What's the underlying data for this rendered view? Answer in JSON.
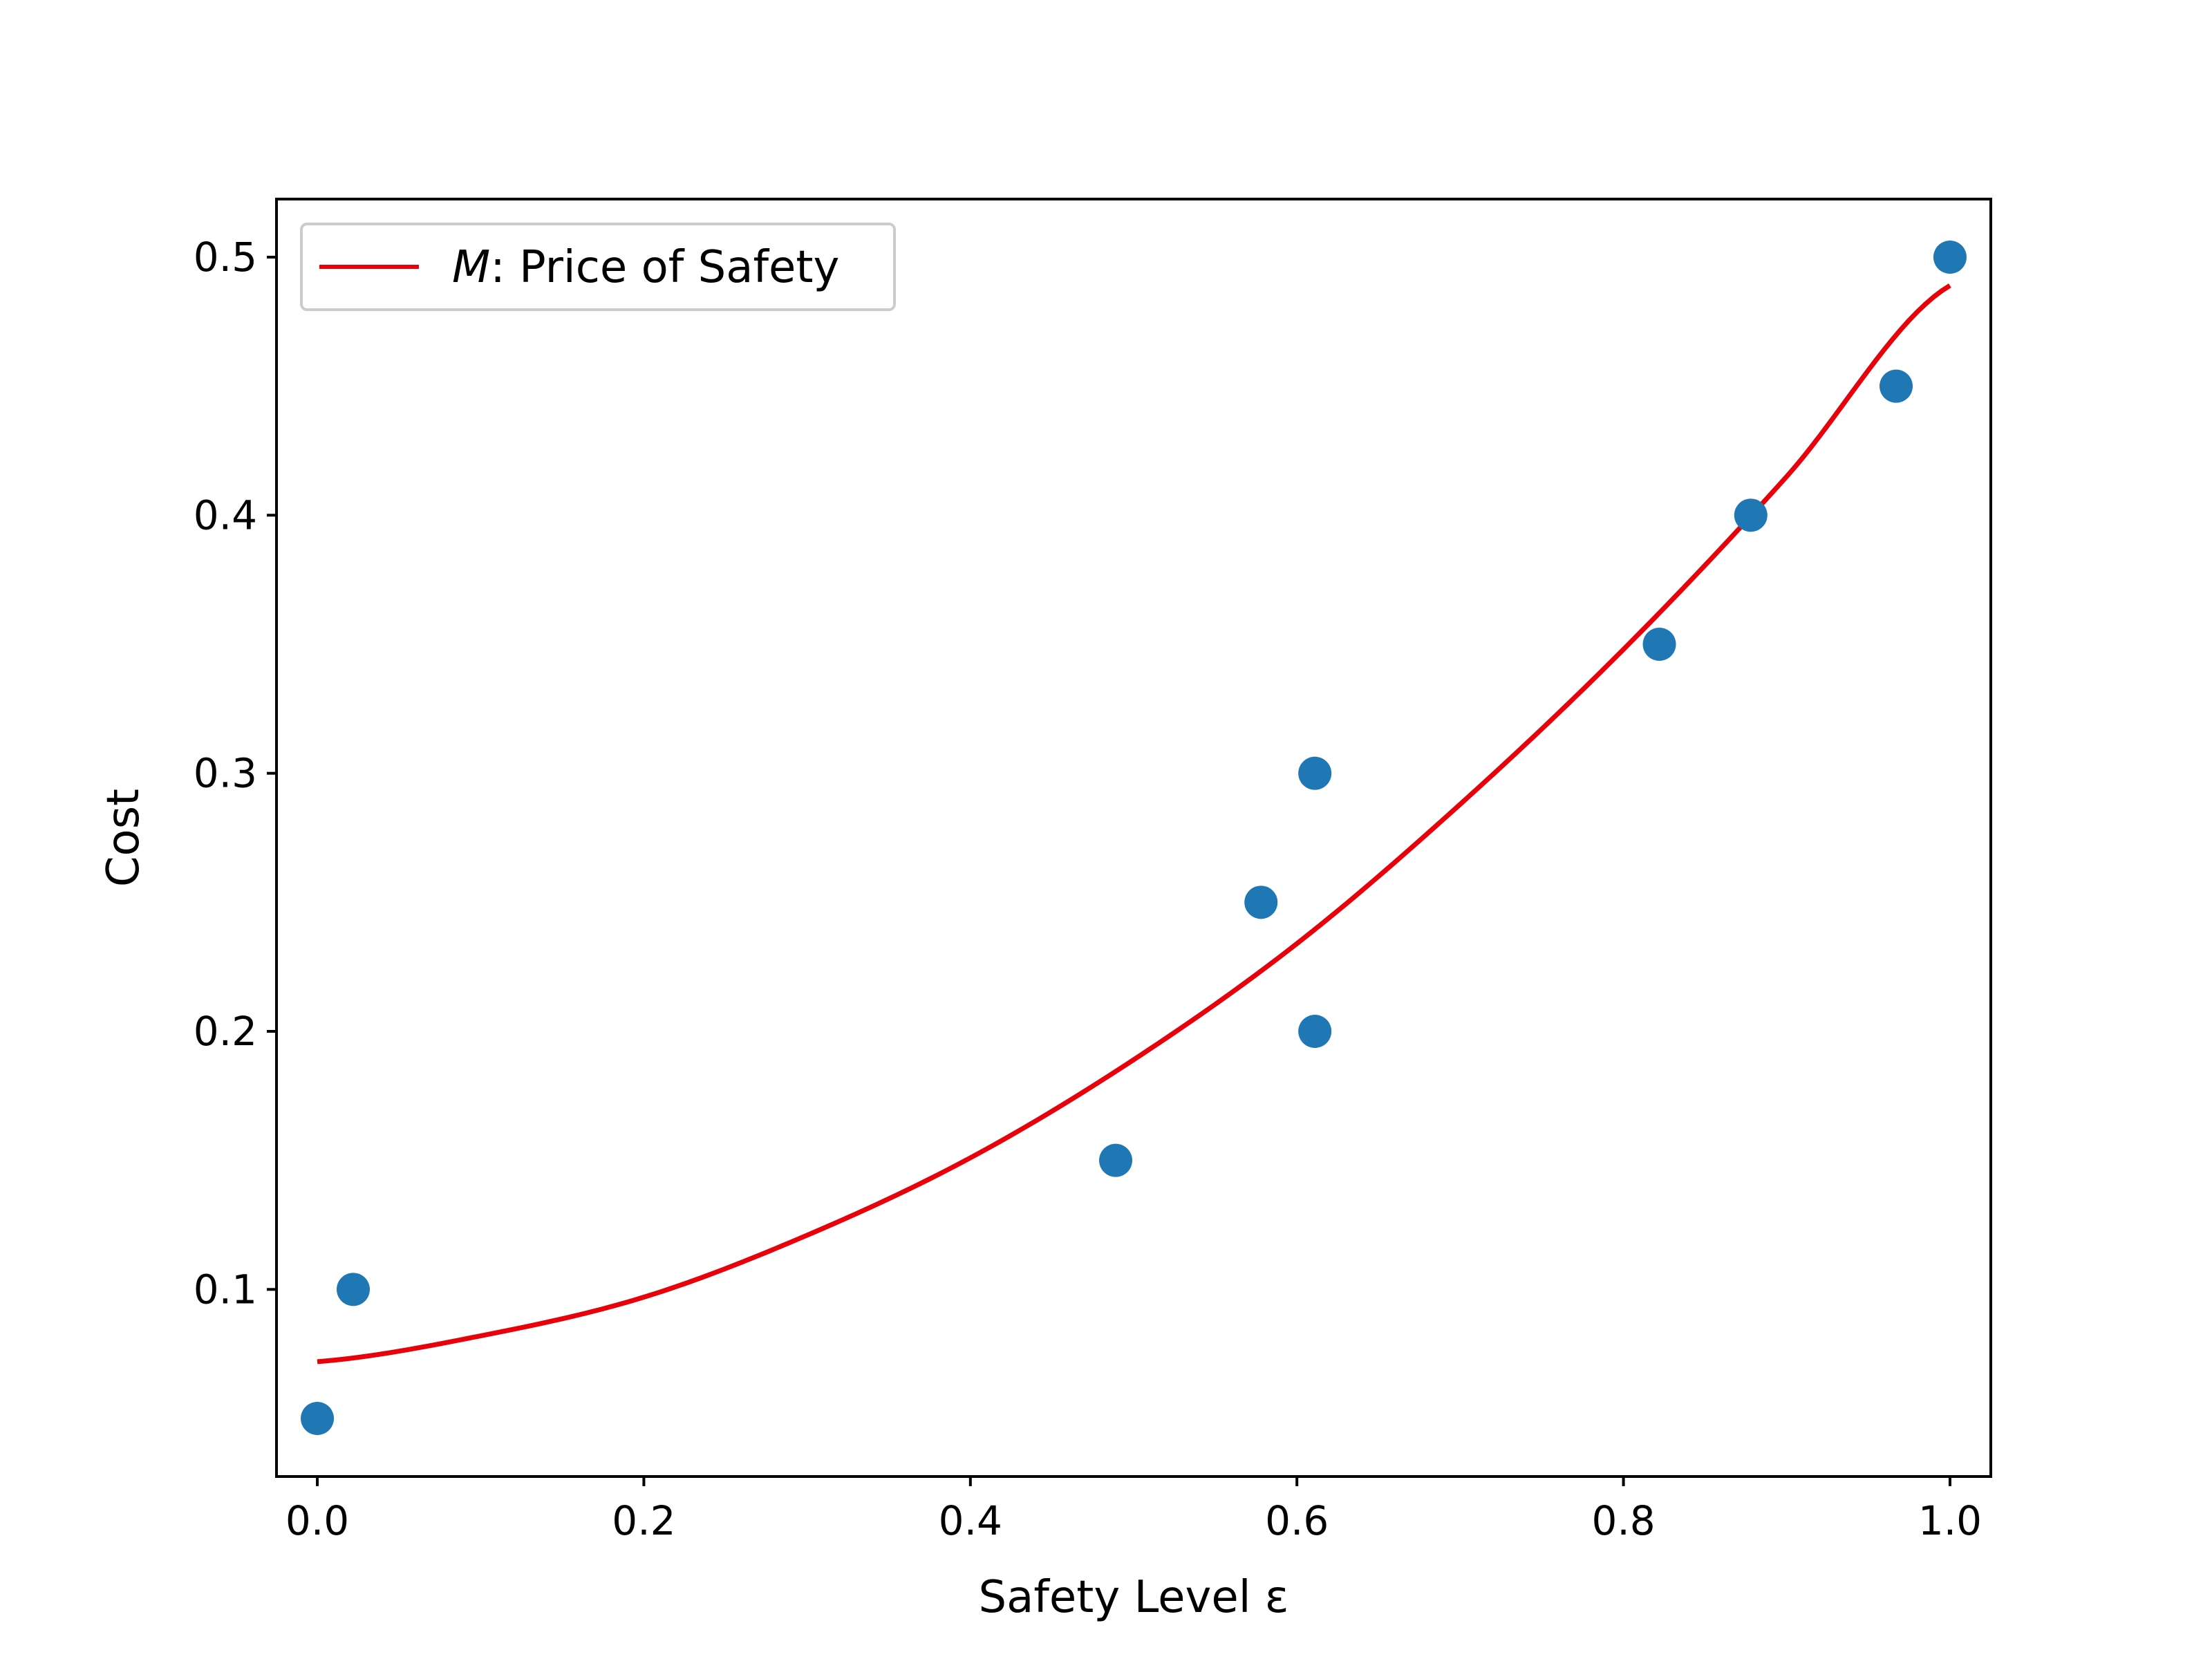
{
  "chart_data": {
    "type": "scatter",
    "xlabel": "Safety Level ε",
    "ylabel": "Cost",
    "xlim": [
      -0.025,
      1.025
    ],
    "ylim": [
      0.0275,
      0.5225
    ],
    "x_ticks": [
      0.0,
      0.2,
      0.4,
      0.6,
      0.8,
      1.0
    ],
    "x_tick_labels": [
      "0.0",
      "0.2",
      "0.4",
      "0.6",
      "0.8",
      "1.0"
    ],
    "y_ticks": [
      0.1,
      0.2,
      0.3,
      0.4,
      0.5
    ],
    "y_tick_labels": [
      "0.1",
      "0.2",
      "0.3",
      "0.4",
      "0.5"
    ],
    "grid": false,
    "legend": {
      "position": "upper-left",
      "entries": [
        {
          "label_italic": "M",
          "label_rest": ": Price of Safety",
          "color": "#e8000b",
          "marker": "line"
        }
      ]
    },
    "series": [
      {
        "type": "scatter",
        "color": "#1f77b4",
        "points": [
          {
            "x": 0.0,
            "y": 0.05
          },
          {
            "x": 0.022,
            "y": 0.1
          },
          {
            "x": 0.489,
            "y": 0.15
          },
          {
            "x": 0.578,
            "y": 0.25
          },
          {
            "x": 0.611,
            "y": 0.2
          },
          {
            "x": 0.611,
            "y": 0.3
          },
          {
            "x": 0.822,
            "y": 0.35
          },
          {
            "x": 0.878,
            "y": 0.4
          },
          {
            "x": 0.967,
            "y": 0.45
          },
          {
            "x": 1.0,
            "y": 0.5
          }
        ]
      },
      {
        "type": "line",
        "name": "M: Price of Safety",
        "color": "#e8000b",
        "points": [
          {
            "x": 0.0,
            "y": 0.072
          },
          {
            "x": 0.1,
            "y": 0.082
          },
          {
            "x": 0.2,
            "y": 0.097
          },
          {
            "x": 0.3,
            "y": 0.121
          },
          {
            "x": 0.4,
            "y": 0.151
          },
          {
            "x": 0.5,
            "y": 0.189
          },
          {
            "x": 0.6,
            "y": 0.234
          },
          {
            "x": 0.7,
            "y": 0.288
          },
          {
            "x": 0.8,
            "y": 0.348
          },
          {
            "x": 0.9,
            "y": 0.415
          },
          {
            "x": 1.0,
            "y": 0.489
          }
        ]
      }
    ]
  }
}
